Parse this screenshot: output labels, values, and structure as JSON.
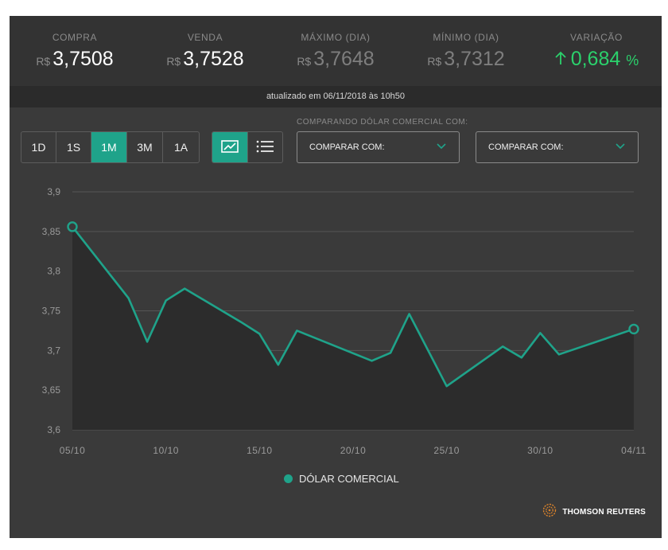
{
  "quotes": {
    "currency_symbol": "R$",
    "compra": {
      "label": "COMPRA",
      "value": "3,7508"
    },
    "venda": {
      "label": "VENDA",
      "value": "3,7528"
    },
    "maximo": {
      "label": "MÁXIMO (DIA)",
      "value": "3,7648"
    },
    "minimo": {
      "label": "MÍNIMO (DIA)",
      "value": "3,7312"
    },
    "variacao": {
      "label": "VARIAÇÃO",
      "value": "0,684",
      "unit": "%"
    }
  },
  "updated_text": "atualizado em 06/11/2018 às 10h50",
  "periods": [
    {
      "label": "1D",
      "active": false
    },
    {
      "label": "1S",
      "active": false
    },
    {
      "label": "1M",
      "active": true
    },
    {
      "label": "3M",
      "active": false
    },
    {
      "label": "1A",
      "active": false
    }
  ],
  "view_toggle": {
    "chart_icon": "line-chart-icon",
    "list_icon": "list-icon",
    "active": "chart"
  },
  "compare": {
    "caption": "COMPARANDO DÓLAR COMERCIAL COM:",
    "select1": "COMPARAR COM:",
    "select2": "COMPARAR COM:"
  },
  "brand": {
    "name": "THOMSON REUTERS",
    "icon": "thomson-reuters-logo"
  },
  "colors": {
    "accent": "#1fa38a",
    "positive": "#2bd16c",
    "background": "#3a3a3a"
  },
  "chart_data": {
    "type": "area",
    "title": "",
    "xlabel": "",
    "ylabel": "",
    "ylim": [
      3.6,
      3.9
    ],
    "yticks": [
      3.9,
      3.85,
      3.8,
      3.75,
      3.7,
      3.65,
      3.6
    ],
    "ytick_labels": [
      "3,9",
      "3,85",
      "3,8",
      "3,75",
      "3,7",
      "3,65",
      "3,6"
    ],
    "xticks": [
      5,
      10,
      15,
      20,
      25,
      30,
      35
    ],
    "xtick_labels": [
      "05/10",
      "10/10",
      "15/10",
      "20/10",
      "25/10",
      "30/10",
      "04/11"
    ],
    "grid": true,
    "legend_position": "bottom",
    "series": [
      {
        "name": "DÓLAR COMERCIAL",
        "color": "#1fa38a",
        "x": [
          5,
          8,
          9,
          10,
          11,
          14,
          15,
          16,
          17,
          21,
          22,
          23,
          25,
          28,
          29,
          30,
          31,
          35
        ],
        "y": [
          3.856,
          3.766,
          3.711,
          3.763,
          3.778,
          3.736,
          3.721,
          3.682,
          3.725,
          3.687,
          3.697,
          3.746,
          3.655,
          3.705,
          3.691,
          3.722,
          3.695,
          3.727
        ],
        "labels": [
          "05/10",
          "08/10",
          "09/10",
          "10/10",
          "11/10",
          "14/10",
          "15/10",
          "16/10",
          "17/10",
          "21/10",
          "22/10",
          "23/10",
          "25/10",
          "28/10",
          "29/10",
          "30/10",
          "31/10",
          "04/11"
        ]
      }
    ]
  }
}
